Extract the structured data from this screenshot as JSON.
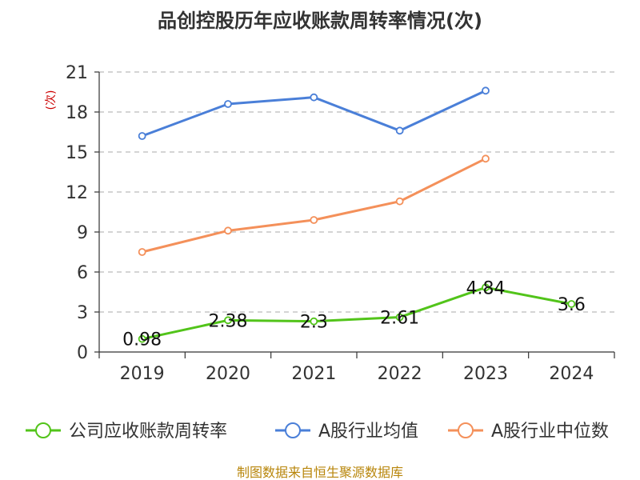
{
  "chart_data": {
    "type": "line",
    "title": "品创控股历年应收账款周转率情况(次)",
    "ylabel": "(次)",
    "xlabel": "",
    "categories": [
      "2019",
      "2020",
      "2021",
      "2022",
      "2023",
      "2024"
    ],
    "ylim": [
      0,
      21
    ],
    "yticks": [
      0,
      3,
      6,
      9,
      12,
      15,
      18,
      21
    ],
    "grid": true,
    "legend_position": "bottom",
    "series": [
      {
        "name": "公司应收账款周转率",
        "color": "#52c41a",
        "values": [
          0.98,
          2.38,
          2.3,
          2.61,
          4.84,
          3.6
        ],
        "labels": [
          "0.98",
          "2.38",
          "2.3",
          "2.61",
          "4.84",
          "3.6"
        ]
      },
      {
        "name": "A股行业均值",
        "color": "#4a7fd8",
        "values": [
          16.2,
          18.6,
          19.1,
          16.6,
          19.6,
          null
        ]
      },
      {
        "name": "A股行业中位数",
        "color": "#f4905a",
        "values": [
          7.5,
          9.1,
          9.9,
          11.3,
          14.5,
          null
        ]
      }
    ],
    "source": "制图数据来自恒生聚源数据库"
  }
}
